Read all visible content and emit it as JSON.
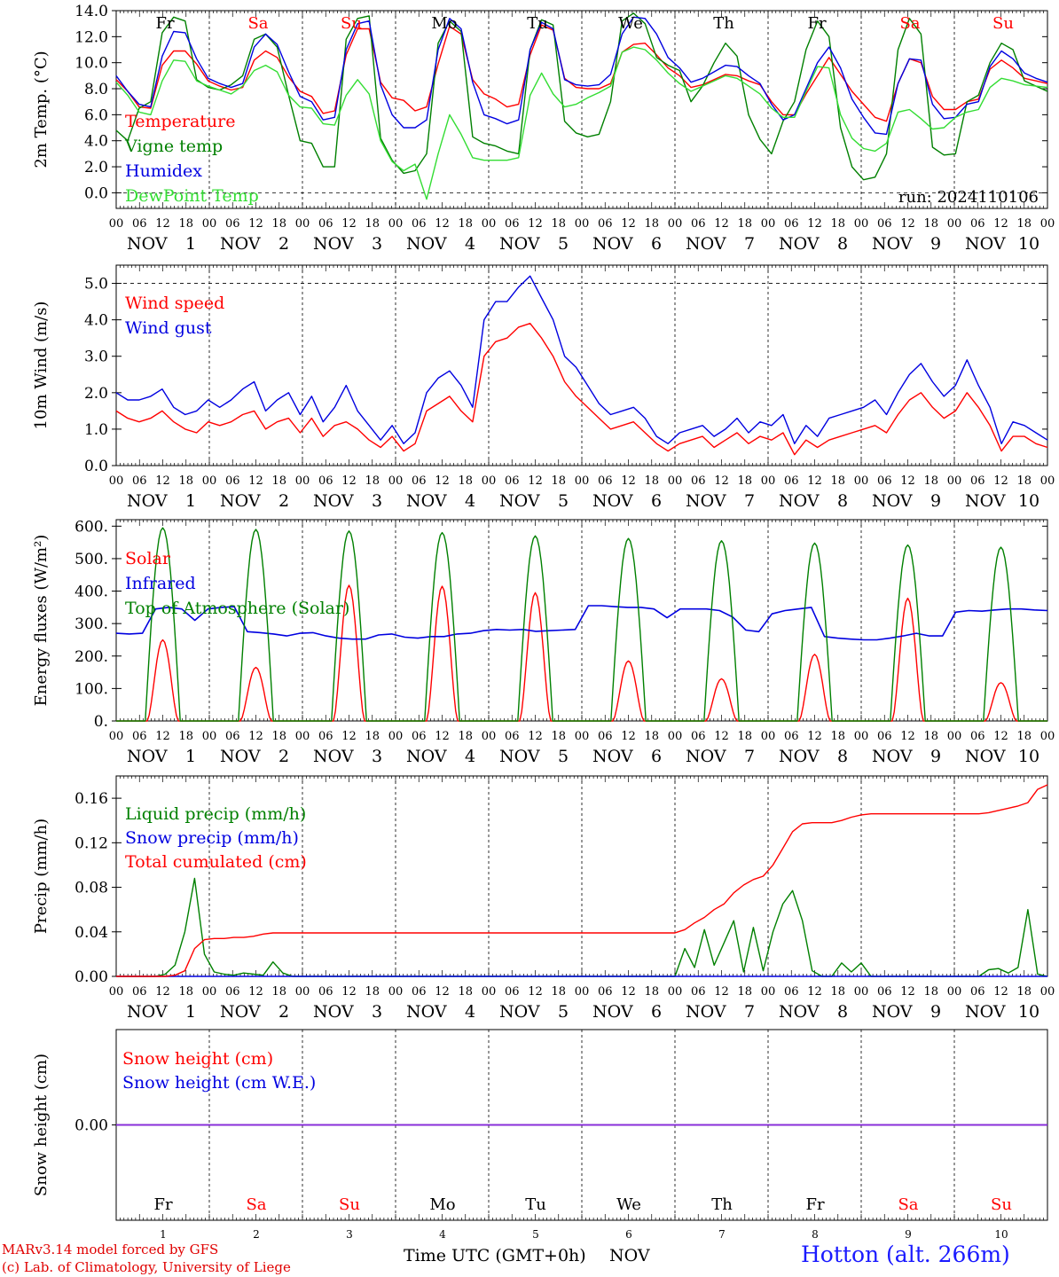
{
  "chart_data": [
    {
      "id": "temp",
      "type": "line",
      "ylabel": "2m Temp. (°C)",
      "ylim": [
        -1.2,
        14.0
      ],
      "yticks": [
        "0.0",
        "2.0",
        "4.0",
        "6.0",
        "8.0",
        "10.0",
        "12.0",
        "14.0"
      ],
      "ytick_values": [
        0,
        2,
        4,
        6,
        8,
        10,
        12,
        14
      ],
      "dashed_y": 0,
      "annotation": "run: 2024110106",
      "series": [
        {
          "name": "Temperature",
          "color": "#ff0000",
          "values": [
            8.7,
            7.8,
            6.6,
            6.5,
            9.8,
            10.9,
            10.9,
            9.9,
            8.6,
            8.2,
            7.9,
            8.1,
            10.2,
            10.9,
            10.4,
            8.9,
            7.8,
            7.4,
            6.1,
            6.3,
            10.6,
            12.6,
            12.6,
            8.5,
            7.3,
            7.1,
            6.3,
            6.6,
            9.9,
            12.8,
            12.2,
            8.7,
            7.6,
            7.2,
            6.6,
            6.8,
            10.6,
            12.9,
            12.5,
            8.8,
            8.1,
            8.0,
            8.0,
            8.4,
            10.8,
            11.4,
            11.5,
            10.6,
            9.6,
            9.0,
            8.1,
            8.3,
            8.7,
            9.1,
            9.0,
            8.6,
            8.3,
            7.0,
            6.0,
            6.0,
            7.6,
            9.0,
            10.4,
            9.1,
            7.8,
            6.8,
            5.8,
            5.5,
            8.4,
            10.3,
            10.0,
            7.4,
            6.4,
            6.4,
            7.0,
            7.2,
            9.5,
            10.2,
            9.6,
            8.8,
            8.6,
            8.4
          ]
        },
        {
          "name": "Vigne temp",
          "color": "#008000",
          "values": [
            4.8,
            4.0,
            6.5,
            7.0,
            12.3,
            13.5,
            13.2,
            8.7,
            8.1,
            7.9,
            8.3,
            9.0,
            11.8,
            12.2,
            11.2,
            7.5,
            4.0,
            3.8,
            2.0,
            2.0,
            11.8,
            13.4,
            13.6,
            4.2,
            2.5,
            1.5,
            1.7,
            3.0,
            11.5,
            13.2,
            12.4,
            4.3,
            3.8,
            3.6,
            3.2,
            3.0,
            11.0,
            13.3,
            12.9,
            5.5,
            4.6,
            4.3,
            4.5,
            7.0,
            13.2,
            13.8,
            13.0,
            10.4,
            9.8,
            9.4,
            7.0,
            8.2,
            10.0,
            11.5,
            10.5,
            6.0,
            4.1,
            3.0,
            5.5,
            7.0,
            11.0,
            13.2,
            12.0,
            5.0,
            2.0,
            1.0,
            1.2,
            3.0,
            11.0,
            13.4,
            12.2,
            3.5,
            2.9,
            3.0,
            7.0,
            7.5,
            10.0,
            11.5,
            11.0,
            8.6,
            8.2,
            7.8
          ]
        },
        {
          "name": "Humidex",
          "color": "#0000e0",
          "values": [
            9.0,
            7.8,
            6.8,
            6.6,
            10.5,
            12.4,
            12.3,
            10.3,
            8.8,
            8.4,
            8.1,
            8.4,
            11.2,
            12.2,
            11.4,
            9.3,
            7.4,
            7.0,
            5.6,
            5.8,
            11.0,
            13.0,
            13.2,
            8.3,
            6.0,
            5.0,
            5.0,
            5.6,
            11.0,
            13.4,
            12.6,
            8.5,
            6.0,
            5.7,
            5.3,
            5.6,
            11.0,
            13.1,
            12.6,
            8.7,
            8.3,
            8.2,
            8.3,
            9.1,
            12.2,
            13.5,
            13.4,
            12.2,
            10.4,
            9.6,
            8.5,
            8.8,
            9.3,
            9.8,
            9.7,
            9.0,
            8.4,
            6.8,
            5.6,
            6.0,
            8.0,
            10.0,
            11.2,
            9.6,
            7.2,
            5.8,
            4.6,
            4.5,
            8.4,
            10.3,
            10.2,
            6.8,
            5.7,
            5.8,
            6.8,
            7.0,
            9.7,
            10.9,
            10.3,
            9.2,
            8.8,
            8.5
          ]
        },
        {
          "name": "DewPoint Temp",
          "color": "#33dd33",
          "values": [
            8.5,
            7.5,
            6.2,
            6.0,
            8.6,
            10.2,
            10.1,
            8.6,
            8.2,
            7.9,
            7.6,
            8.2,
            9.4,
            9.8,
            9.3,
            7.5,
            6.6,
            6.5,
            5.3,
            5.2,
            7.5,
            8.7,
            7.6,
            4.0,
            2.4,
            1.7,
            2.2,
            -0.5,
            3.0,
            6.0,
            4.5,
            2.7,
            2.5,
            2.5,
            2.5,
            2.7,
            7.5,
            9.2,
            7.6,
            6.6,
            6.8,
            7.3,
            7.7,
            8.2,
            10.8,
            11.2,
            11.0,
            10.2,
            9.2,
            8.4,
            7.8,
            8.2,
            8.6,
            9.0,
            8.8,
            8.2,
            7.6,
            6.5,
            5.8,
            5.8,
            7.8,
            9.7,
            9.6,
            6.0,
            4.2,
            3.4,
            3.2,
            3.8,
            6.2,
            6.4,
            5.7,
            4.9,
            5.0,
            5.8,
            6.2,
            6.4,
            8.1,
            8.8,
            8.6,
            8.3,
            8.2,
            8.1
          ]
        }
      ]
    },
    {
      "id": "wind",
      "type": "line",
      "ylabel": "10m Wind (m/s)",
      "ylim": [
        0,
        5.5
      ],
      "yticks": [
        "0.0",
        "1.0",
        "2.0",
        "3.0",
        "4.0",
        "5.0"
      ],
      "ytick_values": [
        0,
        1,
        2,
        3,
        4,
        5
      ],
      "dashed_y": 5,
      "series": [
        {
          "name": "Wind speed",
          "color": "#ff0000",
          "values": [
            1.5,
            1.3,
            1.2,
            1.3,
            1.5,
            1.2,
            1.0,
            0.9,
            1.2,
            1.1,
            1.2,
            1.4,
            1.5,
            1.0,
            1.2,
            1.3,
            0.9,
            1.3,
            0.8,
            1.1,
            1.2,
            1.0,
            0.7,
            0.5,
            0.8,
            0.4,
            0.6,
            1.5,
            1.7,
            1.9,
            1.5,
            1.2,
            3.0,
            3.4,
            3.5,
            3.8,
            3.9,
            3.5,
            3.0,
            2.3,
            1.9,
            1.6,
            1.3,
            1.0,
            1.1,
            1.2,
            0.9,
            0.6,
            0.4,
            0.6,
            0.7,
            0.8,
            0.5,
            0.7,
            0.9,
            0.6,
            0.8,
            0.7,
            0.9,
            0.3,
            0.7,
            0.5,
            0.7,
            0.8,
            0.9,
            1.0,
            1.1,
            0.9,
            1.4,
            1.8,
            2.0,
            1.6,
            1.3,
            1.5,
            2.0,
            1.6,
            1.1,
            0.4,
            0.8,
            0.8,
            0.6,
            0.5
          ]
        },
        {
          "name": "Wind gust",
          "color": "#0000e0",
          "values": [
            2.0,
            1.8,
            1.8,
            1.9,
            2.1,
            1.6,
            1.4,
            1.5,
            1.8,
            1.6,
            1.8,
            2.1,
            2.3,
            1.5,
            1.8,
            2.0,
            1.4,
            1.9,
            1.2,
            1.6,
            2.2,
            1.5,
            1.1,
            0.7,
            1.1,
            0.6,
            0.9,
            2.0,
            2.4,
            2.6,
            2.2,
            1.6,
            4.0,
            4.5,
            4.5,
            4.9,
            5.2,
            4.6,
            4.0,
            3.0,
            2.7,
            2.2,
            1.7,
            1.4,
            1.5,
            1.6,
            1.3,
            0.8,
            0.6,
            0.9,
            1.0,
            1.1,
            0.8,
            1.0,
            1.3,
            0.9,
            1.2,
            1.1,
            1.4,
            0.6,
            1.1,
            0.8,
            1.3,
            1.4,
            1.5,
            1.6,
            1.8,
            1.4,
            2.0,
            2.5,
            2.8,
            2.3,
            1.9,
            2.2,
            2.9,
            2.2,
            1.6,
            0.6,
            1.2,
            1.1,
            0.9,
            0.7
          ]
        }
      ]
    },
    {
      "id": "energy",
      "type": "line",
      "ylabel": "Energy fluxes (W/m²)",
      "ylim": [
        0,
        620
      ],
      "yticks": [
        "0.",
        "100.",
        "200.",
        "300.",
        "400.",
        "500.",
        "600."
      ],
      "ytick_values": [
        0,
        100,
        200,
        300,
        400,
        500,
        600
      ],
      "series": [
        {
          "name": "Solar",
          "color": "#ff0000",
          "peaks": [
            250,
            165,
            418,
            415,
            395,
            185,
            130,
            205,
            378,
            118
          ]
        },
        {
          "name": "Infrared",
          "color": "#0000e0",
          "values": [
            270,
            268,
            270,
            345,
            350,
            345,
            310,
            345,
            350,
            352,
            275,
            272,
            268,
            262,
            270,
            272,
            262,
            255,
            252,
            252,
            265,
            268,
            258,
            255,
            260,
            260,
            268,
            270,
            278,
            282,
            280,
            282,
            276,
            278,
            280,
            282,
            355,
            355,
            352,
            350,
            350,
            345,
            318,
            345,
            345,
            345,
            340,
            320,
            280,
            275,
            330,
            340,
            345,
            350,
            260,
            255,
            252,
            250,
            250,
            255,
            262,
            270,
            262,
            262,
            335,
            340,
            338,
            342,
            345,
            345,
            342,
            340
          ]
        },
        {
          "name": "Top of Atmosphere (Solar)",
          "color": "#008000",
          "peaks": [
            595,
            590,
            585,
            580,
            570,
            562,
            555,
            548,
            542,
            535
          ]
        }
      ]
    },
    {
      "id": "precip",
      "type": "line",
      "ylabel": "Precip (mm/h)",
      "ylim": [
        0,
        0.18
      ],
      "yticks": [
        "0.00",
        "0.04",
        "0.08",
        "0.12",
        "0.16"
      ],
      "ytick_values": [
        0,
        0.04,
        0.08,
        0.12,
        0.16
      ],
      "series": [
        {
          "name": "Liquid precip (mm/h)",
          "color": "#008000",
          "values": [
            0,
            0,
            0,
            0,
            0,
            0.002,
            0.01,
            0.04,
            0.088,
            0.02,
            0.004,
            0.002,
            0.001,
            0.003,
            0.002,
            0.001,
            0.013,
            0.003,
            0,
            0,
            0,
            0,
            0,
            0,
            0,
            0,
            0,
            0,
            0,
            0,
            0,
            0,
            0,
            0,
            0,
            0,
            0,
            0,
            0,
            0,
            0,
            0,
            0,
            0,
            0,
            0,
            0,
            0,
            0,
            0,
            0,
            0,
            0,
            0,
            0,
            0,
            0,
            0,
            0.025,
            0.008,
            0.042,
            0.01,
            0.03,
            0.05,
            0.004,
            0.044,
            0.005,
            0.04,
            0.065,
            0.077,
            0.05,
            0.005,
            0,
            0,
            0.012,
            0.004,
            0.012,
            0,
            0,
            0,
            0,
            0,
            0,
            0,
            0,
            0,
            0,
            0,
            0,
            0.006,
            0.007,
            0.003,
            0.008,
            0.06,
            0.002,
            0
          ]
        },
        {
          "name": "Snow precip (mm/h)",
          "color": "#0000e0",
          "values": [
            0,
            0
          ]
        },
        {
          "name": "Total cumulated (cm)",
          "color": "#ff0000",
          "values": [
            0,
            0,
            0,
            0,
            0,
            0,
            0.001,
            0.005,
            0.025,
            0.033,
            0.034,
            0.034,
            0.035,
            0.035,
            0.036,
            0.038,
            0.039,
            0.039,
            0.039,
            0.039,
            0.039,
            0.039,
            0.039,
            0.039,
            0.039,
            0.039,
            0.039,
            0.039,
            0.039,
            0.039,
            0.039,
            0.039,
            0.039,
            0.039,
            0.039,
            0.039,
            0.039,
            0.039,
            0.039,
            0.039,
            0.039,
            0.039,
            0.039,
            0.039,
            0.039,
            0.039,
            0.039,
            0.039,
            0.039,
            0.039,
            0.039,
            0.039,
            0.039,
            0.039,
            0.039,
            0.039,
            0.039,
            0.039,
            0.042,
            0.048,
            0.053,
            0.06,
            0.065,
            0.075,
            0.082,
            0.087,
            0.09,
            0.1,
            0.115,
            0.13,
            0.137,
            0.138,
            0.138,
            0.138,
            0.14,
            0.143,
            0.145,
            0.146,
            0.146,
            0.146,
            0.146,
            0.146,
            0.146,
            0.146,
            0.146,
            0.146,
            0.146,
            0.146,
            0.146,
            0.147,
            0.149,
            0.151,
            0.153,
            0.156,
            0.168,
            0.172
          ]
        }
      ]
    },
    {
      "id": "snow",
      "type": "line",
      "ylabel": "Snow height (cm)",
      "ylim": [
        -1,
        1
      ],
      "yticks": [
        "0.00"
      ],
      "ytick_values": [
        0
      ],
      "series": [
        {
          "name": "Snow height (cm)",
          "color": "#ff0000",
          "values": [
            0,
            0
          ]
        },
        {
          "name": "Snow height (cm W.E.)",
          "color": "#0000e0",
          "values": [
            0,
            0
          ]
        }
      ]
    }
  ],
  "days": [
    {
      "abbr": "Fr",
      "num": "1",
      "color": "#000000"
    },
    {
      "abbr": "Sa",
      "num": "2",
      "color": "#ff0000"
    },
    {
      "abbr": "Su",
      "num": "3",
      "color": "#ff0000"
    },
    {
      "abbr": "Mo",
      "num": "4",
      "color": "#000000"
    },
    {
      "abbr": "Tu",
      "num": "5",
      "color": "#000000"
    },
    {
      "abbr": "We",
      "num": "6",
      "color": "#000000"
    },
    {
      "abbr": "Th",
      "num": "7",
      "color": "#000000"
    },
    {
      "abbr": "Fr",
      "num": "8",
      "color": "#000000"
    },
    {
      "abbr": "Sa",
      "num": "9",
      "color": "#ff0000"
    },
    {
      "abbr": "Su",
      "num": "10",
      "color": "#ff0000"
    }
  ],
  "month_label": "NOV",
  "hour_ticks": [
    "00",
    "06",
    "12",
    "18"
  ],
  "final_hour": "00",
  "footer": {
    "model_line1": "MARv3.14 model forced by GFS",
    "model_line2": "(c) Lab. of Climatology, University of Liege",
    "xlabel": "Time UTC (GMT+0h)",
    "xlabel_month": "NOV",
    "location": "Hotton (alt. 266m)"
  },
  "colors": {
    "temp": "#ff0000",
    "vigne": "#008000",
    "humidex": "#0000e0",
    "dew": "#33dd33",
    "axis": "#000000"
  }
}
